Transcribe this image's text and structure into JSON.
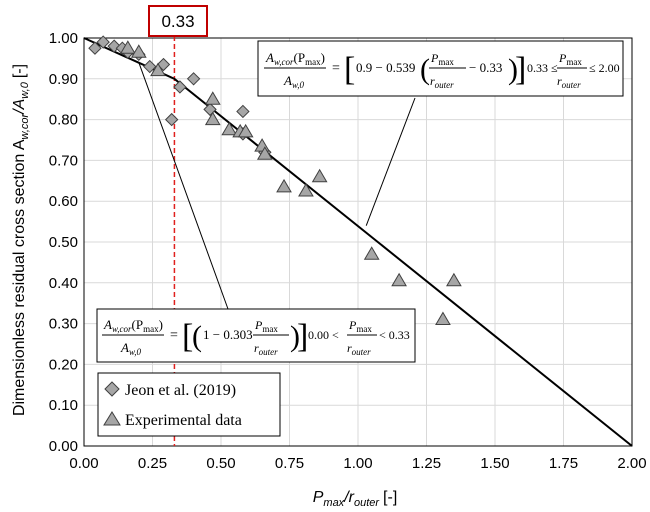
{
  "chart_data": {
    "type": "scatter",
    "xlabel": {
      "main": "P",
      "sub1": "max",
      "mid": "/r",
      "sub2": "outer",
      "unit": "[-]"
    },
    "ylabel": {
      "main": "Dimensionless residual cross section A",
      "sub1": "w,cor",
      "mid": "/A",
      "sub2": "w,0",
      "unit": "[-]"
    },
    "xlim": [
      0,
      2
    ],
    "ylim": [
      0,
      1
    ],
    "x_ticks": [
      "0.00",
      "0.25",
      "0.50",
      "0.75",
      "1.00",
      "1.25",
      "1.50",
      "1.75",
      "2.00"
    ],
    "y_ticks": [
      "0.00",
      "0.10",
      "0.20",
      "0.30",
      "0.40",
      "0.50",
      "0.60",
      "0.70",
      "0.80",
      "0.90",
      "1.00"
    ],
    "grid": true,
    "threshold": {
      "x": 0.33,
      "label": "0.33",
      "color": "#e0201e"
    },
    "series": [
      {
        "name": "Jeon et al. (2019)",
        "marker": "diamond",
        "color": "#a6a6a6",
        "points": [
          [
            0.04,
            0.975
          ],
          [
            0.07,
            0.99
          ],
          [
            0.11,
            0.98
          ],
          [
            0.14,
            0.975
          ],
          [
            0.16,
            0.965
          ],
          [
            0.2,
            0.96
          ],
          [
            0.24,
            0.93
          ],
          [
            0.29,
            0.935
          ],
          [
            0.32,
            0.8
          ],
          [
            0.35,
            0.88
          ],
          [
            0.4,
            0.9
          ],
          [
            0.46,
            0.825
          ],
          [
            0.58,
            0.82
          ],
          [
            0.58,
            0.765
          ],
          [
            0.66,
            0.72
          ]
        ]
      },
      {
        "name": "Experimental data",
        "marker": "triangle",
        "color": "#a6a6a6",
        "points": [
          [
            0.16,
            0.975
          ],
          [
            0.2,
            0.965
          ],
          [
            0.27,
            0.92
          ],
          [
            0.47,
            0.85
          ],
          [
            0.47,
            0.8
          ],
          [
            0.53,
            0.775
          ],
          [
            0.57,
            0.77
          ],
          [
            0.59,
            0.77
          ],
          [
            0.65,
            0.735
          ],
          [
            0.66,
            0.715
          ],
          [
            0.73,
            0.635
          ],
          [
            0.81,
            0.625
          ],
          [
            0.86,
            0.66
          ],
          [
            1.05,
            0.47
          ],
          [
            1.15,
            0.405
          ],
          [
            1.31,
            0.31
          ],
          [
            1.35,
            0.405
          ]
        ]
      }
    ],
    "fit_line": [
      [
        0.0,
        1.0
      ],
      [
        0.33,
        0.9
      ],
      [
        2.0,
        0.0
      ]
    ],
    "equation_1": {
      "lhs_num": "A",
      "lhs_num_sub": "w,cor",
      "lhs_num_arg": "(P",
      "lhs_num_arg_sub": "max",
      "lhs_num_close": ")",
      "lhs_den": "A",
      "lhs_den_sub": "w,0",
      "eq": "=",
      "const": "0.9 − 0.539",
      "frac_num": "P",
      "frac_num_sub": "max",
      "frac_den": "r",
      "frac_den_sub": "outer",
      "minus": "− 0.33",
      "range_left": "0.33 ≤",
      "range_right": "≤ 2.00",
      "range_num": "P",
      "range_num_sub": "max",
      "range_den": "r",
      "range_den_sub": "outer"
    },
    "equation_2": {
      "lhs_num": "A",
      "lhs_num_sub": "w,cor",
      "lhs_num_arg": "(P",
      "lhs_num_arg_sub": "max",
      "lhs_num_close": ")",
      "lhs_den": "A",
      "lhs_den_sub": "w,0",
      "eq": "=",
      "const": "1 − 0.303",
      "frac_num": "P",
      "frac_num_sub": "max",
      "frac_den": "r",
      "frac_den_sub": "outer",
      "range_left": "0.00 <",
      "range_right": "< 0.33",
      "range_num": "P",
      "range_num_sub": "max",
      "range_den": "r",
      "range_den_sub": "outer"
    },
    "legend": {
      "placement": "bottom-left"
    }
  }
}
